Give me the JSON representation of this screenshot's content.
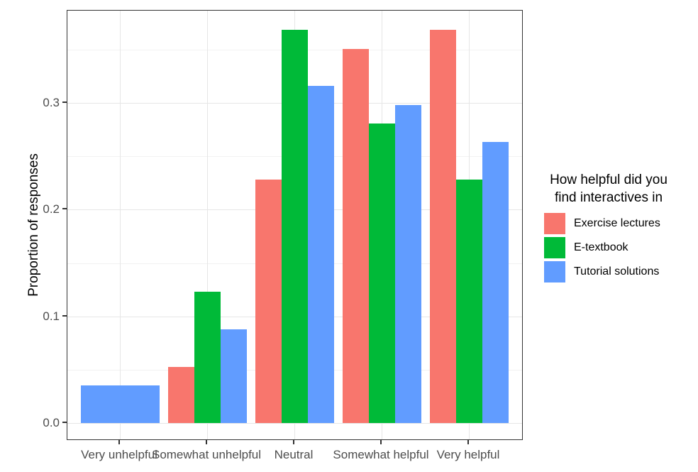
{
  "chart_data": {
    "type": "bar",
    "title": "",
    "xlabel": "",
    "ylabel": "Proportion of responses",
    "categories": [
      "Very unhelpful",
      "Somewhat unhelpful",
      "Neutral",
      "Somewhat helpful",
      "Very helpful"
    ],
    "series": [
      {
        "name": "Exercise lectures",
        "color": "#F8766D",
        "values": [
          null,
          0.0526,
          0.2281,
          0.3509,
          0.3684
        ]
      },
      {
        "name": "E-textbook",
        "color": "#00BA38",
        "values": [
          null,
          0.1228,
          0.3684,
          0.2807,
          0.2281
        ]
      },
      {
        "name": "Tutorial solutions",
        "color": "#619CFF",
        "values": [
          0.0351,
          0.0877,
          0.3158,
          0.2982,
          0.2632
        ]
      }
    ],
    "y_ticks": [
      0,
      0.1,
      0.2,
      0.3
    ],
    "y_tick_labels": [
      "0.0",
      "0.1",
      "0.2",
      "0.3"
    ],
    "y_minor_ticks": [
      0.05,
      0.15,
      0.25,
      0.35
    ],
    "ylim": [
      -0.0185,
      0.3875
    ],
    "grid": "major-and-minor-horizontal, major-vertical",
    "legend": {
      "position": "right",
      "title_lines": [
        "How helpful did you",
        "find interactives in"
      ]
    },
    "style": {
      "panel_border_color": "#333333",
      "grid_major_color": "#e6e6e6",
      "grid_minor_color": "#f2f2f2",
      "axis_text_color": "#4d4d4d",
      "text_color": "#000000",
      "background": "#ffffff"
    }
  }
}
